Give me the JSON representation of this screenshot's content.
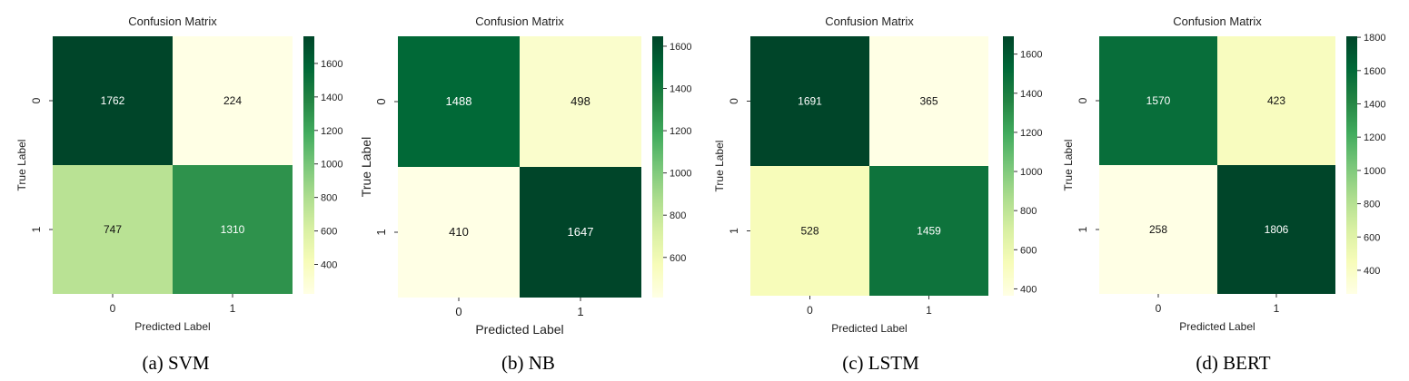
{
  "chart_data": [
    {
      "type": "heatmap",
      "title": "Confusion Matrix",
      "xlabel": "Predicted Label",
      "ylabel": "True Label",
      "x_categories": [
        "0",
        "1"
      ],
      "y_categories": [
        "0",
        "1"
      ],
      "values": [
        [
          1762,
          224
        ],
        [
          747,
          1310
        ]
      ],
      "colorbar": {
        "min": 224,
        "max": 1762,
        "ticks": [
          400,
          600,
          800,
          1000,
          1200,
          1400,
          1600
        ]
      },
      "colormap": "YlGn",
      "caption": "(a)  SVM"
    },
    {
      "type": "heatmap",
      "title": "Confusion Matrix",
      "xlabel": "Predicted Label",
      "ylabel": "True Label",
      "x_categories": [
        "0",
        "1"
      ],
      "y_categories": [
        "0",
        "1"
      ],
      "values": [
        [
          1488,
          498
        ],
        [
          410,
          1647
        ]
      ],
      "colorbar": {
        "min": 410,
        "max": 1647,
        "ticks": [
          600,
          800,
          1000,
          1200,
          1400,
          1600
        ]
      },
      "colormap": "YlGn",
      "caption": "(b)  NB"
    },
    {
      "type": "heatmap",
      "title": "Confusion Matrix",
      "xlabel": "Predicted Label",
      "ylabel": "True Label",
      "x_categories": [
        "0",
        "1"
      ],
      "y_categories": [
        "0",
        "1"
      ],
      "values": [
        [
          1691,
          365
        ],
        [
          528,
          1459
        ]
      ],
      "colorbar": {
        "min": 365,
        "max": 1691,
        "ticks": [
          400,
          600,
          800,
          1000,
          1200,
          1400,
          1600
        ]
      },
      "colormap": "YlGn",
      "caption": "(c)  LSTM"
    },
    {
      "type": "heatmap",
      "title": "Confusion Matrix",
      "xlabel": "Predicted Label",
      "ylabel": "True Label",
      "x_categories": [
        "0",
        "1"
      ],
      "y_categories": [
        "0",
        "1"
      ],
      "values": [
        [
          1570,
          423
        ],
        [
          258,
          1806
        ]
      ],
      "colorbar": {
        "min": 258,
        "max": 1806,
        "ticks": [
          400,
          600,
          800,
          1000,
          1200,
          1400,
          1600,
          1800
        ]
      },
      "colormap": "YlGn",
      "caption": "(d)  BERT"
    }
  ]
}
